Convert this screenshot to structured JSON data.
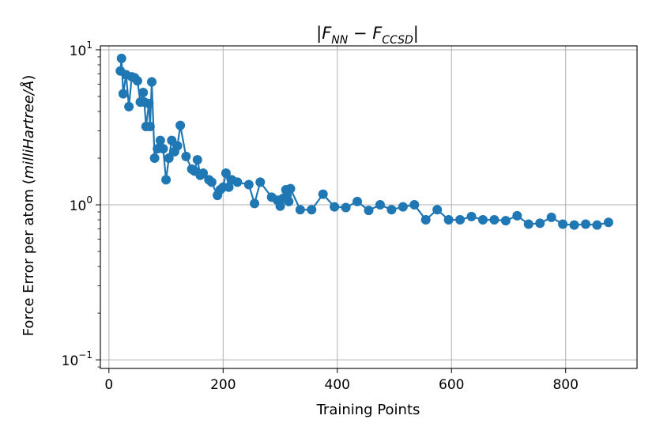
{
  "chart_data": {
    "type": "line",
    "title": "|F_NN − F_CCSD|",
    "title_parts": {
      "F1": "F",
      "sub1": "NN",
      "minus": " − ",
      "F2": "F",
      "sub2": "CCSD"
    },
    "xlabel": "Training Points",
    "ylabel": "Force Error per atom (milliHartree/Å)",
    "ylabel_parts": {
      "main": "Force Error per atom (",
      "unit": "milliHartree/Å",
      "close": ")"
    },
    "xlim": [
      -15,
      925
    ],
    "ylim": [
      0.088,
      10.6
    ],
    "yscale": "log",
    "grid": true,
    "x_ticks": [
      {
        "value": 0,
        "label": "0"
      },
      {
        "value": 200,
        "label": "200"
      },
      {
        "value": 400,
        "label": "400"
      },
      {
        "value": 600,
        "label": "600"
      },
      {
        "value": 800,
        "label": "800"
      }
    ],
    "y_ticks": [
      {
        "value": 0.1,
        "base": "10",
        "exp": "−1"
      },
      {
        "value": 1,
        "base": "10",
        "exp": "0"
      },
      {
        "value": 10,
        "base": "10",
        "exp": "1"
      }
    ],
    "series": [
      {
        "color": "#1f77b4",
        "marker": "circle",
        "x": [
          20,
          22,
          25,
          30,
          35,
          40,
          45,
          50,
          55,
          60,
          62,
          65,
          70,
          72,
          75,
          80,
          85,
          90,
          95,
          100,
          105,
          110,
          115,
          120,
          125,
          135,
          145,
          150,
          155,
          160,
          165,
          175,
          180,
          190,
          195,
          200,
          205,
          210,
          215,
          225,
          245,
          255,
          265,
          285,
          295,
          300,
          305,
          310,
          312,
          315,
          318,
          335,
          355,
          375,
          395,
          415,
          435,
          455,
          475,
          495,
          515,
          535,
          555,
          575,
          595,
          615,
          635,
          655,
          675,
          695,
          715,
          735,
          755,
          775,
          795,
          815,
          835,
          855,
          875
        ],
        "y": [
          7.3,
          8.8,
          5.2,
          6.9,
          4.3,
          6.7,
          6.6,
          6.3,
          4.6,
          5.3,
          4.6,
          3.2,
          4.5,
          3.2,
          6.2,
          2.0,
          2.3,
          2.6,
          2.3,
          1.45,
          2.0,
          2.6,
          2.2,
          2.4,
          3.25,
          2.05,
          1.7,
          1.65,
          1.95,
          1.55,
          1.6,
          1.45,
          1.4,
          1.15,
          1.25,
          1.3,
          1.6,
          1.3,
          1.45,
          1.4,
          1.35,
          1.02,
          1.4,
          1.12,
          1.07,
          0.98,
          1.1,
          1.25,
          1.15,
          1.05,
          1.27,
          0.93,
          0.93,
          1.17,
          0.97,
          0.96,
          1.05,
          0.92,
          1.0,
          0.93,
          0.97,
          1.0,
          0.8,
          0.93,
          0.8,
          0.8,
          0.84,
          0.8,
          0.8,
          0.79,
          0.85,
          0.75,
          0.76,
          0.83,
          0.75,
          0.74,
          0.75,
          0.74,
          0.77
        ]
      }
    ]
  }
}
